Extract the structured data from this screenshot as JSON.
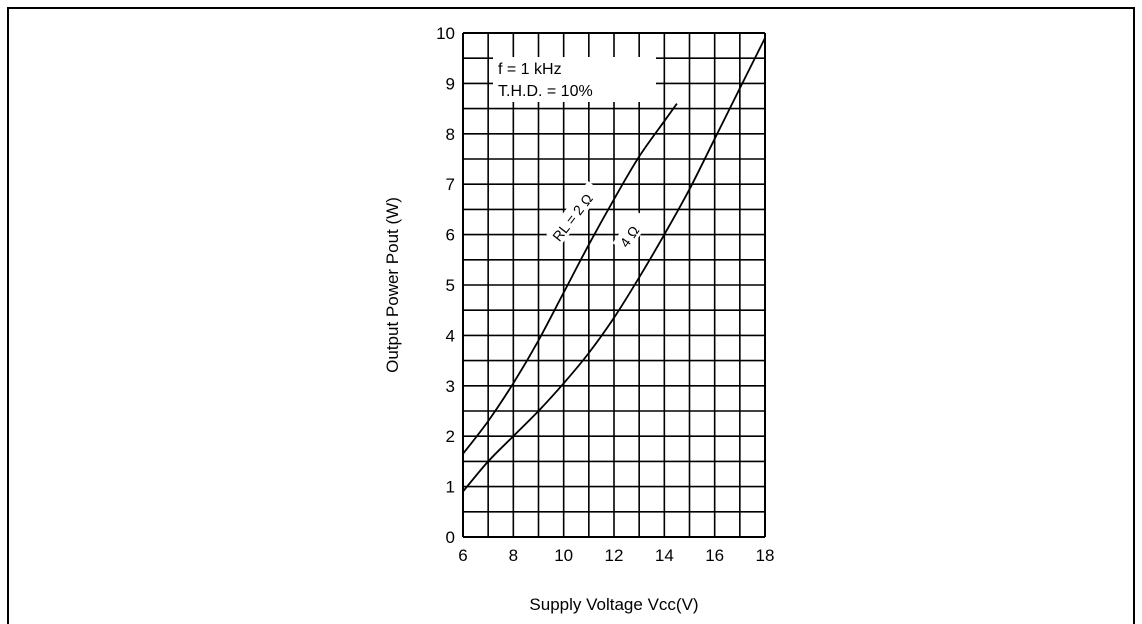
{
  "chart_data": {
    "type": "line",
    "title": "",
    "xlabel": "Supply Voltage  Vcc(V)",
    "ylabel": "Output Power  Pout (W)",
    "xlim": [
      6,
      18
    ],
    "ylim": [
      0,
      10
    ],
    "x_ticks": [
      "6",
      "8",
      "10",
      "12",
      "14",
      "16",
      "18"
    ],
    "y_ticks": [
      "0",
      "1",
      "2",
      "3",
      "4",
      "5",
      "6",
      "7",
      "8",
      "9",
      "10"
    ],
    "grid": true,
    "annotations": [
      "f = 1 kHz",
      "T.H.D.  = 10%"
    ],
    "series": [
      {
        "name": "RL = 2 Ω",
        "x": [
          6,
          7,
          8,
          9,
          10,
          11,
          12,
          13,
          14,
          14.5
        ],
        "values": [
          1.65,
          2.3,
          3.05,
          3.9,
          4.85,
          5.8,
          6.7,
          7.55,
          8.25,
          8.6
        ]
      },
      {
        "name": "4 Ω",
        "x": [
          6,
          7,
          8,
          9,
          10,
          11,
          12,
          13,
          14,
          15,
          16,
          17,
          18
        ],
        "values": [
          0.9,
          1.5,
          2.0,
          2.5,
          3.05,
          3.65,
          4.35,
          5.15,
          6.0,
          6.9,
          7.9,
          8.9,
          9.9
        ]
      }
    ]
  }
}
